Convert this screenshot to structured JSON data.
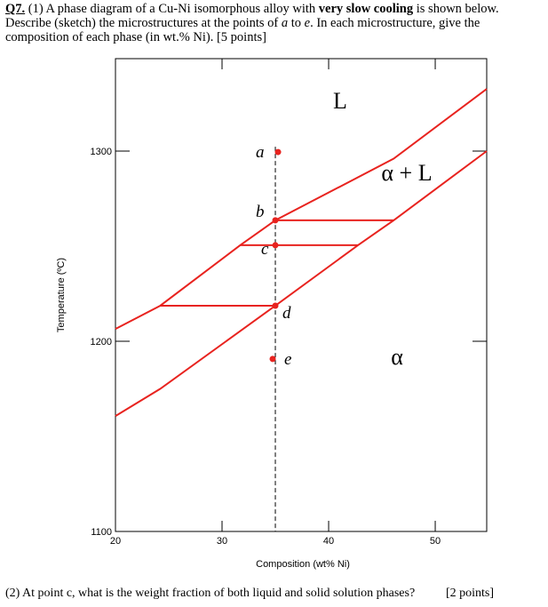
{
  "question": {
    "label": "Q7.",
    "text_parts": [
      "(1) A phase diagram of a Cu-Ni isomorphous alloy with ",
      "very slow cooling",
      " is shown below. Describe (sketch) the microstructures at the points of ",
      "a",
      " to ",
      "e",
      ". In each microstructure, give the composition of each phase (in wt.% Ni).  [5 points]"
    ]
  },
  "figure": {
    "type": "line",
    "xlabel": "Composition (wt% Ni)",
    "ylabel": "Temperature (ºC)",
    "xlim": [
      20,
      54.83
    ],
    "ylim": [
      1100,
      1348.6
    ],
    "xticks": [
      20,
      30,
      40,
      50
    ],
    "yticks": [
      1100,
      1200,
      1300
    ],
    "color": "#e8231f",
    "lines": [
      {
        "x": [
          20,
          24.2,
          31.7,
          35,
          46.1,
          54.83
        ],
        "values": [
          1206.5,
          1218.7,
          1250.5,
          1263.6,
          1296,
          1332.7
        ]
      },
      {
        "x": [
          20,
          24.2,
          35,
          42.75,
          46.1,
          54.83
        ],
        "values": [
          1160.7,
          1175,
          1218.7,
          1250.5,
          1263.6,
          1300
        ]
      }
    ],
    "tie_lines": [
      {
        "x": [
          35,
          46.1
        ],
        "values": [
          1263.6,
          1263.6
        ]
      },
      {
        "x": [
          31.7,
          42.75
        ],
        "values": [
          1250.5,
          1250.5
        ]
      },
      {
        "x": [
          24.2,
          35
        ],
        "values": [
          1218.7,
          1218.7
        ]
      }
    ],
    "alloy_x": 35,
    "points": [
      {
        "label": "a",
        "value": 1299.5
      },
      {
        "label": "b",
        "value": 1263.6
      },
      {
        "label": "c",
        "value": 1250.5
      },
      {
        "label": "d",
        "value": 1218.7
      },
      {
        "label": "e",
        "value": 1190.7
      }
    ],
    "regions": [
      "L",
      "α + L",
      "α"
    ]
  },
  "part2": {
    "text": "(2) At point c, what is the weight fraction of both liquid and solid solution phases?",
    "points": "[2 points]"
  }
}
